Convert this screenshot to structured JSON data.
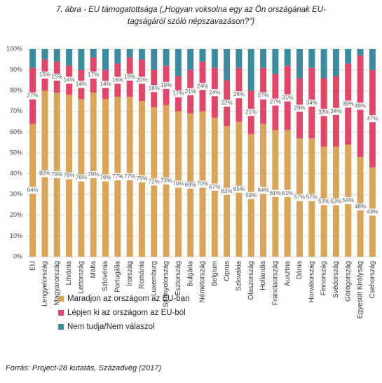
{
  "chart_data": {
    "type": "stacked-bar",
    "title": "7. ábra - EU támogatottsága („Hogyan voksolna egy az Ön országának EU-tagságáról szóló népszavazáson?”)",
    "source": "Forrás: Project-28 kutatás, Századvég (2017)",
    "categories": [
      "EU",
      "Lengyelország",
      "Magyarország",
      "Litvánia",
      "Lettország",
      "Málta",
      "Szlovénia",
      "Portugália",
      "Írország",
      "Románia",
      "Luxemburg",
      "Spanyolország",
      "Észtország",
      "Bulgária",
      "Németország",
      "Belgium",
      "Ciprus",
      "Szlovákia",
      "Olaszország",
      "Hollandia",
      "Franciaország",
      "Ausztria",
      "Dánia",
      "Horvátország",
      "Finnország",
      "Svédország",
      "Görögország",
      "Egyesült Királyság",
      "Csehország"
    ],
    "series": [
      {
        "name": "Maradjon az országom az EU-ban",
        "color": "#d9a55a",
        "values": [
          64,
          80,
          79,
          78,
          76,
          79,
          76,
          77,
          77,
          75,
          72,
          73,
          70,
          69,
          70,
          67,
          63,
          65,
          59,
          64,
          61,
          61,
          57,
          57,
          53,
          53,
          54,
          48,
          43
        ],
        "value_labels": [
          "64%",
          "80%",
          "79%",
          "78%",
          "76%",
          "79%",
          "76%",
          "77%",
          "77%",
          "75%",
          "72%",
          "73%",
          "70%",
          "69%",
          "70%",
          "67%",
          "63%",
          "65%",
          "59%",
          "64%",
          "61%",
          "61%",
          "57%",
          "57%",
          "53%",
          "53%",
          "54%",
          "48%",
          "43%"
        ]
      },
      {
        "name": "Lépjen ki az országom az EU-ból",
        "color": "#e0486b",
        "values": [
          27,
          15,
          15,
          14,
          14,
          17,
          14,
          16,
          19,
          20,
          18,
          19,
          17,
          21,
          24,
          24,
          22,
          26,
          21,
          27,
          27,
          31,
          29,
          34,
          33,
          34,
          39,
          49,
          47
        ],
        "value_labels": [
          "27%",
          "15%",
          "15%",
          "14%",
          "14%",
          "17%",
          "14%",
          "16%",
          "19%",
          "20%",
          "18%",
          "19%",
          "17%",
          "21%",
          "24%",
          "24%",
          "22%",
          "26%",
          "21%",
          "27%",
          "27%",
          "31%",
          "29%",
          "34%",
          "33%",
          "34%",
          "39%",
          "49%",
          "47%"
        ]
      },
      {
        "name": "Nem tudja/Nem válaszol",
        "color": "#3b8a9e",
        "values": [
          9,
          5,
          6,
          8,
          10,
          4,
          10,
          7,
          4,
          5,
          10,
          8,
          13,
          10,
          6,
          9,
          15,
          9,
          20,
          9,
          12,
          8,
          14,
          9,
          14,
          13,
          7,
          3,
          10
        ]
      }
    ],
    "ylim": [
      0,
      100
    ],
    "yticks": [
      {
        "value": 0,
        "label": "0%"
      },
      {
        "value": 10,
        "label": "10%"
      },
      {
        "value": 20,
        "label": "20%"
      },
      {
        "value": 30,
        "label": "30%"
      },
      {
        "value": 40,
        "label": "40%"
      },
      {
        "value": 50,
        "label": "50%"
      },
      {
        "value": 60,
        "label": "60%"
      },
      {
        "value": 70,
        "label": "70%"
      },
      {
        "value": 80,
        "label": "80%"
      },
      {
        "value": 90,
        "label": "90%"
      },
      {
        "value": 100,
        "label": "100%"
      }
    ],
    "grid": true
  }
}
